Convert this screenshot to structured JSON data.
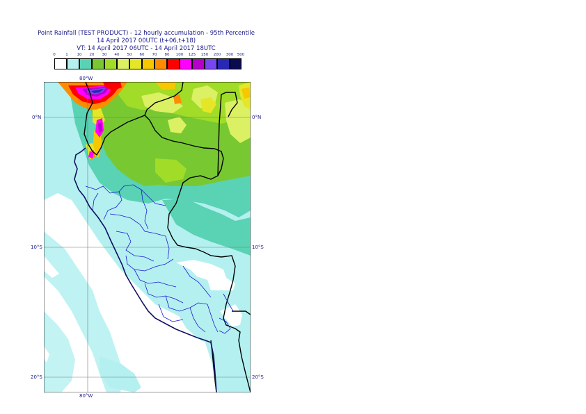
{
  "title": {
    "line1": "Point Rainfall (TEST PRODUCT) - 12 hourly accumulation - 95th Percentile",
    "line2": "14 April 2017 00UTC (t+06,t+18)",
    "line3": "VT: 14 April 2017 06UTC - 14 April 2017 18UTC"
  },
  "colorbar": {
    "labels": [
      "0",
      "1",
      "10",
      "20",
      "30",
      "40",
      "50",
      "60",
      "70",
      "80",
      "100",
      "125",
      "150",
      "200",
      "300",
      "500"
    ],
    "colors": [
      "#ffffff",
      "#b4f0f0",
      "#5ad2b4",
      "#78c832",
      "#a0dc28",
      "#dcf064",
      "#e6e628",
      "#f5c800",
      "#ff8c00",
      "#ff0000",
      "#ff00ff",
      "#b400c8",
      "#7846f0",
      "#2828b4",
      "#0a0a50"
    ]
  },
  "axes": {
    "lon_top": "80°W",
    "lon_bottom": "80°W",
    "lat_0_left": "0°N",
    "lat_0_right": "0°N",
    "lat_10_left": "10°S",
    "lat_10_right": "10°S",
    "lat_20_left": "20°S",
    "lat_20_right": "20°S"
  }
}
